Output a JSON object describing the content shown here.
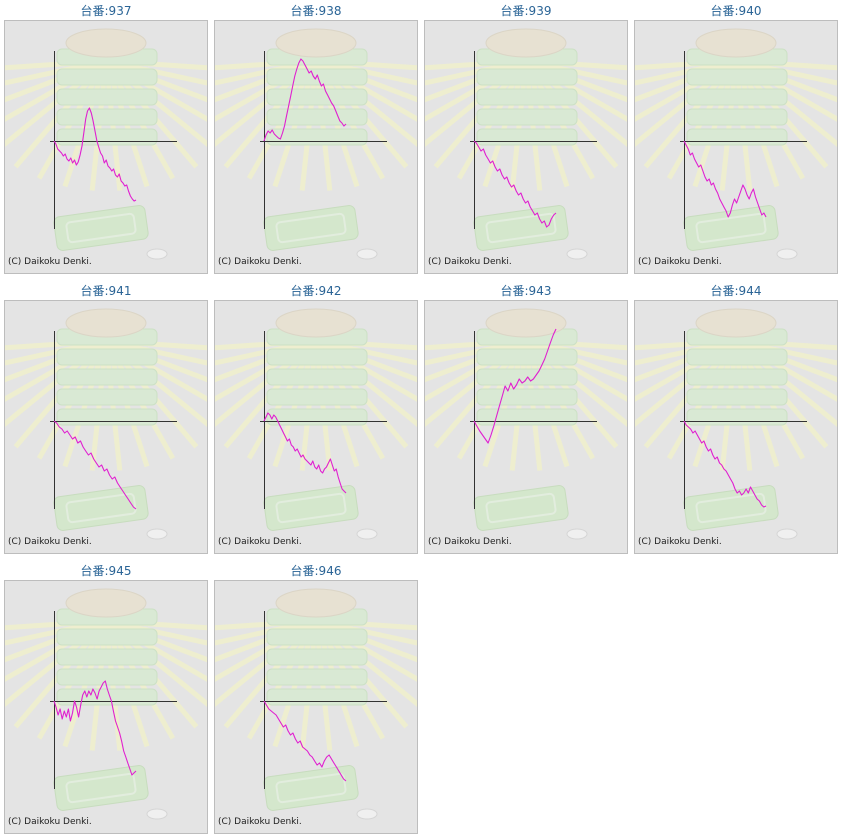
{
  "chart_data": [
    {
      "type": "line",
      "title": "台番:937",
      "credit": "(C) Daikoku Denki.",
      "color": "#e020d0",
      "values": [
        0,
        -3,
        -8,
        -10,
        -12,
        -15,
        -13,
        -18,
        -20,
        -17,
        -22,
        -19,
        -24,
        -21,
        -14,
        -5,
        8,
        22,
        30,
        33,
        28,
        20,
        10,
        0,
        -6,
        -12,
        -15,
        -22,
        -19,
        -25,
        -27,
        -30,
        -28,
        -34,
        -36,
        -33,
        -40,
        -42,
        -45,
        -44,
        -50,
        -55,
        -58,
        -60,
        -59
      ]
    },
    {
      "type": "line",
      "title": "台番:938",
      "credit": "(C) Daikoku Denki.",
      "color": "#e020d0",
      "values": [
        0,
        6,
        10,
        8,
        11,
        7,
        5,
        3,
        2,
        8,
        15,
        25,
        35,
        45,
        55,
        65,
        72,
        78,
        82,
        80,
        76,
        72,
        68,
        70,
        65,
        62,
        66,
        60,
        55,
        57,
        50,
        46,
        42,
        38,
        35,
        30,
        25,
        20,
        18,
        15,
        17
      ]
    },
    {
      "type": "line",
      "title": "台番:939",
      "credit": "(C) Daikoku Denki.",
      "color": "#e020d0",
      "values": [
        0,
        -2,
        -6,
        -10,
        -8,
        -14,
        -18,
        -22,
        -20,
        -26,
        -30,
        -28,
        -34,
        -38,
        -36,
        -42,
        -46,
        -44,
        -50,
        -54,
        -52,
        -58,
        -62,
        -60,
        -66,
        -70,
        -74,
        -72,
        -78,
        -82,
        -80,
        -86,
        -84,
        -78,
        -74,
        -72
      ]
    },
    {
      "type": "line",
      "title": "台番:940",
      "credit": "(C) Daikoku Denki.",
      "color": "#e020d0",
      "values": [
        0,
        -4,
        -8,
        -14,
        -12,
        -18,
        -22,
        -26,
        -24,
        -30,
        -36,
        -40,
        -38,
        -44,
        -42,
        -48,
        -52,
        -58,
        -62,
        -66,
        -70,
        -76,
        -72,
        -64,
        -58,
        -62,
        -56,
        -50,
        -44,
        -48,
        -54,
        -58,
        -52,
        -48,
        -56,
        -62,
        -68,
        -74,
        -72,
        -76
      ]
    },
    {
      "type": "line",
      "title": "台番:941",
      "credit": "(C) Daikoku Denki.",
      "color": "#e020d0",
      "values": [
        0,
        -2,
        -6,
        -8,
        -12,
        -10,
        -14,
        -18,
        -16,
        -22,
        -20,
        -26,
        -30,
        -34,
        -32,
        -38,
        -42,
        -46,
        -44,
        -50,
        -48,
        -54,
        -58,
        -56,
        -62,
        -66,
        -70,
        -74,
        -78,
        -82,
        -86,
        -88
      ]
    },
    {
      "type": "line",
      "title": "台番:942",
      "credit": "(C) Daikoku Denki.",
      "color": "#e020d0",
      "values": [
        0,
        4,
        8,
        6,
        2,
        6,
        4,
        0,
        -4,
        -8,
        -12,
        -16,
        -20,
        -18,
        -24,
        -26,
        -30,
        -28,
        -32,
        -36,
        -34,
        -38,
        -40,
        -42,
        -44,
        -40,
        -46,
        -48,
        -44,
        -50,
        -52,
        -48,
        -46,
        -42,
        -38,
        -44,
        -50,
        -48,
        -56,
        -62,
        -68,
        -70,
        -72
      ]
    },
    {
      "type": "line",
      "title": "台番:943",
      "credit": "(C) Daikoku Denki.",
      "color": "#e020d0",
      "values": [
        0,
        -5,
        -10,
        -14,
        -18,
        -22,
        -14,
        -5,
        5,
        15,
        25,
        35,
        30,
        38,
        32,
        36,
        42,
        38,
        40,
        44,
        40,
        42,
        46,
        50,
        56,
        62,
        70,
        78,
        86,
        92
      ]
    },
    {
      "type": "line",
      "title": "台番:944",
      "credit": "(C) Daikoku Denki.",
      "color": "#e020d0",
      "values": [
        0,
        -4,
        -6,
        -8,
        -12,
        -10,
        -14,
        -18,
        -22,
        -20,
        -26,
        -30,
        -28,
        -34,
        -38,
        -36,
        -42,
        -44,
        -48,
        -50,
        -54,
        -58,
        -62,
        -68,
        -72,
        -70,
        -74,
        -72,
        -68,
        -72,
        -66,
        -70,
        -74,
        -78,
        -80,
        -84,
        -86,
        -85
      ]
    },
    {
      "type": "line",
      "title": "台番:945",
      "credit": "(C) Daikoku Denki.",
      "color": "#e020d0",
      "values": [
        0,
        -6,
        -14,
        -8,
        -18,
        -10,
        -16,
        -8,
        -20,
        -12,
        0,
        -6,
        -16,
        -4,
        6,
        10,
        4,
        10,
        6,
        12,
        8,
        2,
        10,
        14,
        18,
        20,
        12,
        6,
        0,
        -10,
        -20,
        -26,
        -32,
        -40,
        -50,
        -56,
        -62,
        -68,
        -74,
        -72,
        -70
      ]
    },
    {
      "type": "line",
      "title": "台番:946",
      "credit": "(C) Daikoku Denki.",
      "color": "#e020d0",
      "values": [
        0,
        -4,
        -8,
        -10,
        -12,
        -14,
        -18,
        -22,
        -26,
        -24,
        -30,
        -34,
        -32,
        -38,
        -42,
        -40,
        -46,
        -48,
        -50,
        -54,
        -56,
        -60,
        -64,
        -62,
        -66,
        -60,
        -56,
        -54,
        -58,
        -62,
        -66,
        -70,
        -74,
        -78,
        -80
      ]
    }
  ]
}
